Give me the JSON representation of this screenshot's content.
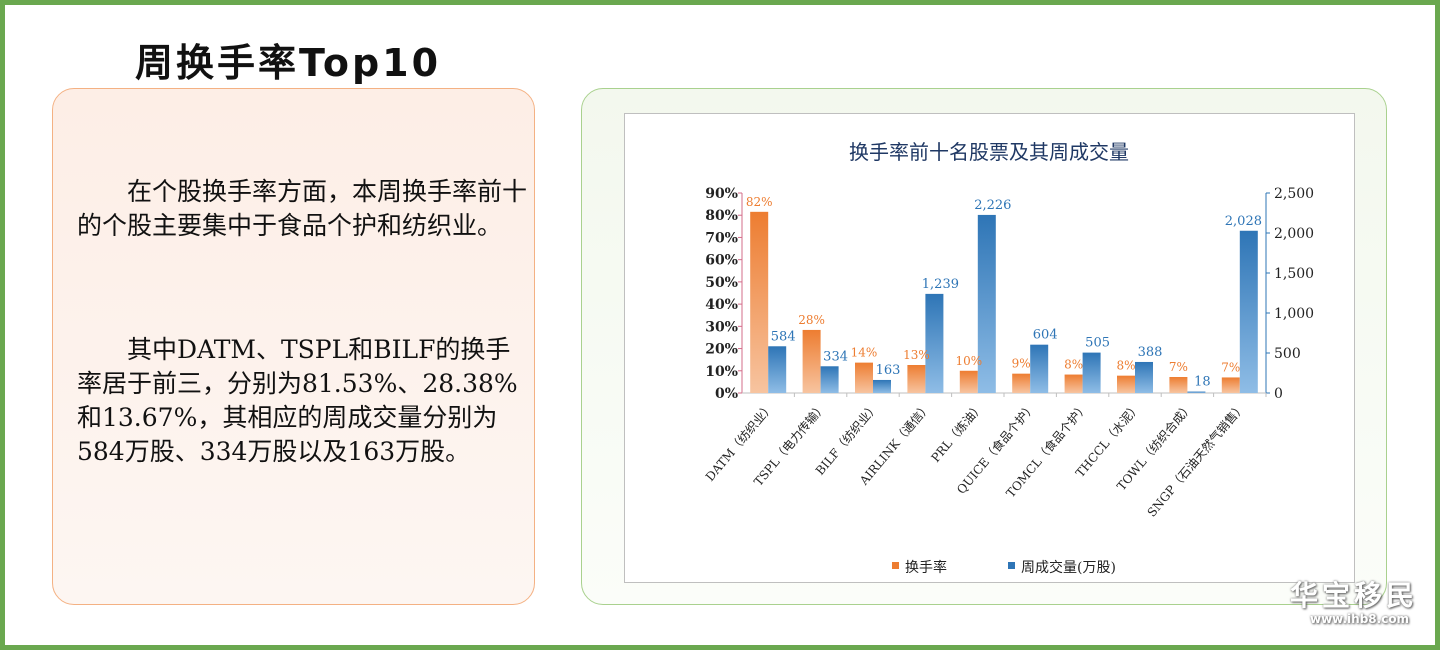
{
  "title": "周换手率Top10",
  "text": {
    "p1": "　　在个股换手率方面，本周换手率前十的个股主要集中于食品个护和纺织业。",
    "p2": "　　其中DATM、TSPL和BILF的换手率居于前三，分别为81.53%、28.38%和13.67%，其相应的周成交量分别为584万股、334万股以及163万股。"
  },
  "watermark": {
    "name": "华宝移民",
    "url": "www.ihb8.com"
  },
  "chart_data": {
    "type": "bar",
    "title": "换手率前十名股票及其周成交量",
    "categories": [
      "DATM（纺织业）",
      "TSPL（电力传输）",
      "BILF（纺织业）",
      "AIRLINK（通信）",
      "PRL（炼油）",
      "QUICE（食品个护）",
      "TOMCL（食品个护）",
      "THCCL（水泥）",
      "TOWL（纺织合成）",
      "SNGP（石油天然气销售）"
    ],
    "series": [
      {
        "name": "换手率",
        "axis": "left",
        "color": "#ed7d31",
        "values": [
          81.53,
          28.38,
          13.67,
          12.6,
          10.0,
          8.7,
          8.3,
          7.8,
          7.2,
          7.0
        ],
        "labels": [
          "82%",
          "28%",
          "14%",
          "13%",
          "10%",
          "9%",
          "8%",
          "8%",
          "7%",
          "7%"
        ]
      },
      {
        "name": "周成交量(万股)",
        "axis": "right",
        "color": "#2e75b6",
        "values": [
          584,
          334,
          163,
          1239,
          2226,
          604,
          505,
          388,
          18,
          2028
        ],
        "labels": [
          "584",
          "334",
          "163",
          "1,239",
          "2,226",
          "604",
          "505",
          "388",
          "18",
          "2,028"
        ]
      }
    ],
    "ylim_left": [
      0,
      90
    ],
    "yticks_left": [
      "0%",
      "10%",
      "20%",
      "30%",
      "40%",
      "50%",
      "60%",
      "70%",
      "80%",
      "90%"
    ],
    "ylim_right": [
      0,
      2500
    ],
    "yticks_right": [
      "0",
      "500",
      "1,000",
      "1,500",
      "2,000",
      "2,500"
    ],
    "legend": "bottom"
  }
}
